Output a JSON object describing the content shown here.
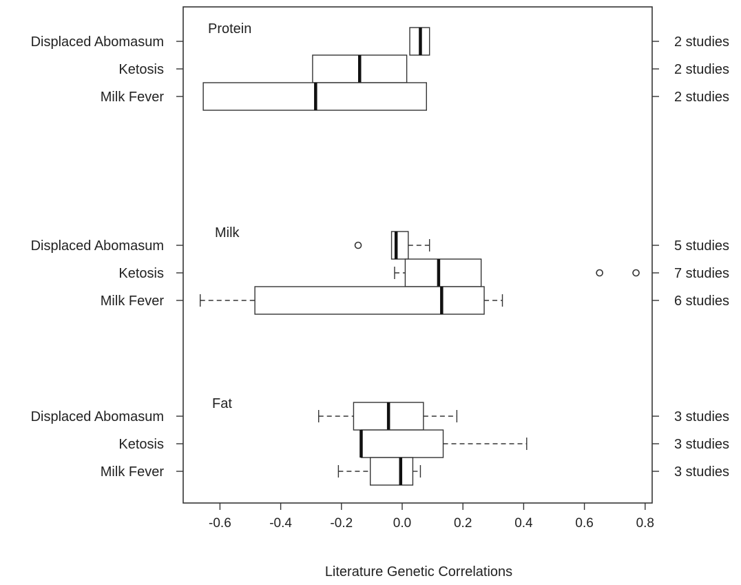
{
  "chart_data": {
    "type": "boxplot",
    "orientation": "horizontal",
    "xlabel": "Literature Genetic Correlations",
    "xlim": [
      -0.72,
      0.84
    ],
    "xticks": [
      -0.6,
      -0.4,
      -0.2,
      0.0,
      0.2,
      0.4,
      0.6,
      0.8
    ],
    "xtick_labels": [
      "-0.6",
      "-0.4",
      "-0.2",
      "0.0",
      "0.2",
      "0.4",
      "0.6",
      "0.8"
    ],
    "groups": [
      {
        "name": "Protein",
        "rows": [
          {
            "label": "Displaced Abomasum",
            "studies": "2 studies",
            "whisker_low": null,
            "q1": 0.025,
            "median": 0.06,
            "q3": 0.09,
            "whisker_high": null,
            "outliers": []
          },
          {
            "label": "Ketosis",
            "studies": "2 studies",
            "whisker_low": null,
            "q1": -0.295,
            "median": -0.14,
            "q3": 0.015,
            "whisker_high": null,
            "outliers": []
          },
          {
            "label": "Milk Fever",
            "studies": "2 studies",
            "whisker_low": null,
            "q1": -0.655,
            "median": -0.285,
            "q3": 0.08,
            "whisker_high": null,
            "outliers": []
          }
        ]
      },
      {
        "name": "Milk",
        "rows": [
          {
            "label": "Displaced Abomasum",
            "studies": "5 studies",
            "whisker_low": -0.035,
            "q1": -0.035,
            "median": -0.02,
            "q3": 0.02,
            "whisker_high": 0.09,
            "outliers": [
              -0.145
            ]
          },
          {
            "label": "Ketosis",
            "studies": "7 studies",
            "whisker_low": -0.025,
            "q1": 0.01,
            "median": 0.12,
            "q3": 0.26,
            "whisker_high": 0.26,
            "outliers": [
              0.65,
              0.77
            ]
          },
          {
            "label": "Milk Fever",
            "studies": "6 studies",
            "whisker_low": -0.665,
            "q1": -0.485,
            "median": 0.13,
            "q3": 0.27,
            "whisker_high": 0.33,
            "outliers": []
          }
        ]
      },
      {
        "name": "Fat",
        "rows": [
          {
            "label": "Displaced Abomasum",
            "studies": "3 studies",
            "whisker_low": -0.275,
            "q1": -0.16,
            "median": -0.045,
            "q3": 0.07,
            "whisker_high": 0.18,
            "outliers": []
          },
          {
            "label": "Ketosis",
            "studies": "3 studies",
            "whisker_low": -0.135,
            "q1": -0.135,
            "median": -0.135,
            "q3": 0.135,
            "whisker_high": 0.41,
            "outliers": []
          },
          {
            "label": "Milk Fever",
            "studies": "3 studies",
            "whisker_low": -0.21,
            "q1": -0.105,
            "median": -0.005,
            "q3": 0.035,
            "whisker_high": 0.06,
            "outliers": []
          }
        ]
      }
    ]
  }
}
